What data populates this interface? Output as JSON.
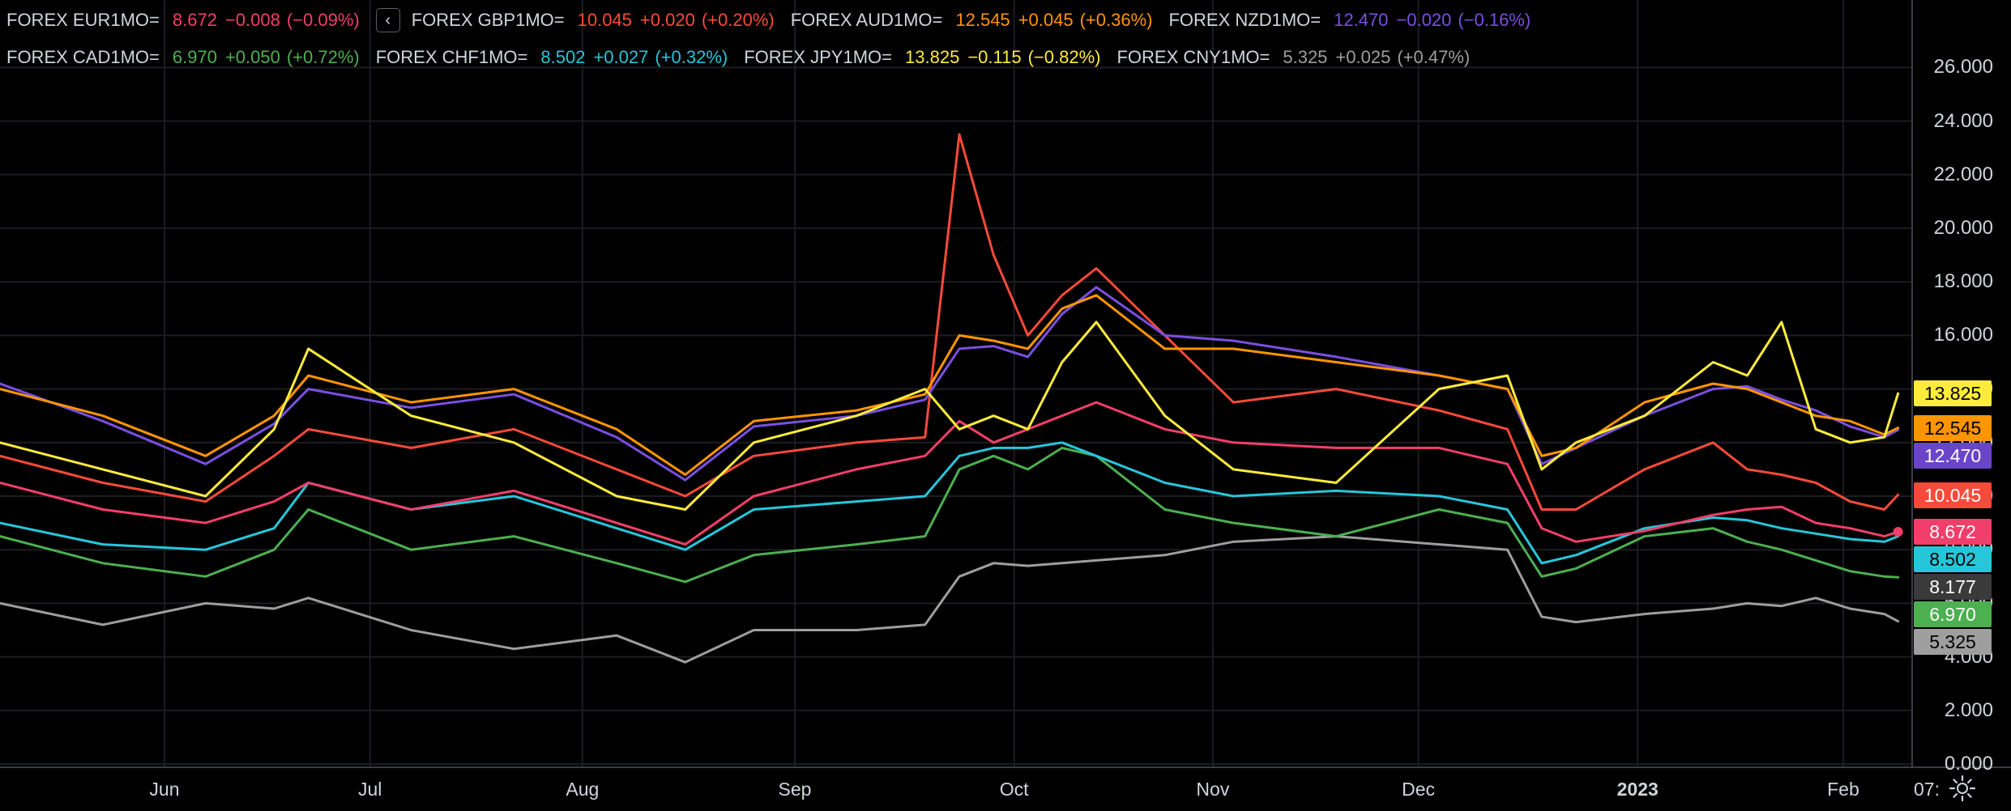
{
  "legend": {
    "collapse_glyph": "‹",
    "collapse_icon": "chevron-left-icon",
    "row1": [
      {
        "symbol": "FOREX EUR1MO=",
        "last": "8.672",
        "change": "−0.008",
        "pct": "(−0.09%)",
        "color": "#f23e6a"
      },
      {
        "symbol": "FOREX GBP1MO=",
        "last": "10.045",
        "change": "+0.020",
        "pct": "(+0.20%)",
        "color": "#f84a3a"
      },
      {
        "symbol": "FOREX AUD1MO=",
        "last": "12.545",
        "change": "+0.045",
        "pct": "(+0.36%)",
        "color": "#ff9500"
      },
      {
        "symbol": "FOREX NZD1MO=",
        "last": "12.470",
        "change": "−0.020",
        "pct": "(−0.16%)",
        "color": "#7a4fe0"
      }
    ],
    "row2": [
      {
        "symbol": "FOREX CAD1MO=",
        "last": "6.970",
        "change": "+0.050",
        "pct": "(+0.72%)",
        "color": "#4caf50"
      },
      {
        "symbol": "FOREX CHF1MO=",
        "last": "8.502",
        "change": "+0.027",
        "pct": "(+0.32%)",
        "color": "#26c6da"
      },
      {
        "symbol": "FOREX JPY1MO=",
        "last": "13.825",
        "change": "−0.115",
        "pct": "(−0.82%)",
        "color": "#ffeb3b"
      },
      {
        "symbol": "FOREX CNY1MO=",
        "last": "5.325",
        "change": "+0.025",
        "pct": "(+0.47%)",
        "color": "#9e9e9e"
      }
    ]
  },
  "price_tags": [
    {
      "value": "13.825",
      "bg": "#ffeb3b",
      "fg": "#000000"
    },
    {
      "value": "12.545",
      "bg": "#ff9500",
      "fg": "#000000"
    },
    {
      "value": "12.470",
      "bg": "#6a45c9",
      "fg": "#ffffff"
    },
    {
      "value": "10.045",
      "bg": "#f84a3a",
      "fg": "#ffffff"
    },
    {
      "value": "8.672",
      "bg": "#f23e6a",
      "fg": "#ffffff"
    },
    {
      "value": "8.502",
      "bg": "#26c6da",
      "fg": "#000000"
    },
    {
      "value": "8.177",
      "bg": "#3a3a3a",
      "fg": "#ffffff"
    },
    {
      "value": "6.970",
      "bg": "#4caf50",
      "fg": "#ffffff"
    },
    {
      "value": "5.325",
      "bg": "#9e9e9e",
      "fg": "#000000"
    }
  ],
  "time_axis": {
    "clipped_label": "07:",
    "settings_icon": "gear-icon"
  },
  "chart_data": {
    "type": "line",
    "ylim": [
      -0.5,
      27
    ],
    "y_ticks": [
      "0.000",
      "2.000",
      "4.000",
      "6.000",
      "8.000",
      "10.000",
      "12.000",
      "14.000",
      "16.000",
      "18.000",
      "20.000",
      "22.000",
      "24.000",
      "26.000"
    ],
    "grid": true,
    "legend_position": "top-left",
    "x_ticks": [
      {
        "label": "Jun",
        "x": "2022-06-01",
        "bold": false
      },
      {
        "label": "Jul",
        "x": "2022-07-01",
        "bold": false
      },
      {
        "label": "Aug",
        "x": "2022-08-01",
        "bold": false
      },
      {
        "label": "Sep",
        "x": "2022-09-01",
        "bold": false
      },
      {
        "label": "Oct",
        "x": "2022-10-03",
        "bold": false
      },
      {
        "label": "Nov",
        "x": "2022-11-01",
        "bold": false
      },
      {
        "label": "Dec",
        "x": "2022-12-01",
        "bold": false
      },
      {
        "label": "2023",
        "x": "2023-01-02",
        "bold": true
      },
      {
        "label": "Feb",
        "x": "2023-02-01",
        "bold": false
      }
    ],
    "x": [
      "2022-05-08",
      "2022-05-23",
      "2022-06-07",
      "2022-06-17",
      "2022-06-22",
      "2022-07-07",
      "2022-07-22",
      "2022-08-06",
      "2022-08-16",
      "2022-08-26",
      "2022-09-10",
      "2022-09-20",
      "2022-09-25",
      "2022-09-30",
      "2022-10-05",
      "2022-10-10",
      "2022-10-15",
      "2022-10-25",
      "2022-11-04",
      "2022-11-19",
      "2022-12-04",
      "2022-12-14",
      "2022-12-19",
      "2022-12-24",
      "2023-01-03",
      "2023-01-13",
      "2023-01-18",
      "2023-01-23",
      "2023-01-28",
      "2023-02-02",
      "2023-02-07",
      "2023-02-09"
    ],
    "series": [
      {
        "name": "FOREX EUR1MO=",
        "color": "#f23e6a",
        "end_marker": true,
        "values": [
          10.5,
          9.5,
          9.0,
          9.8,
          10.5,
          9.5,
          10.2,
          9.0,
          8.2,
          10.0,
          11.0,
          11.5,
          12.8,
          12.0,
          12.5,
          13.0,
          13.5,
          12.5,
          12.0,
          11.8,
          11.8,
          11.2,
          8.8,
          8.3,
          8.7,
          9.3,
          9.5,
          9.6,
          9.0,
          8.8,
          8.5,
          8.67
        ]
      },
      {
        "name": "FOREX GBP1MO=",
        "color": "#f84a3a",
        "end_marker": false,
        "values": [
          11.5,
          10.5,
          9.8,
          11.5,
          12.5,
          11.8,
          12.5,
          11.0,
          10.0,
          11.5,
          12.0,
          12.2,
          23.5,
          19.0,
          16.0,
          17.5,
          18.5,
          16.0,
          13.5,
          14.0,
          13.2,
          12.5,
          9.5,
          9.5,
          11.0,
          12.0,
          11.0,
          10.8,
          10.5,
          9.8,
          9.5,
          10.05
        ]
      },
      {
        "name": "FOREX AUD1MO=",
        "color": "#ff9500",
        "end_marker": false,
        "values": [
          14.0,
          13.0,
          11.5,
          13.0,
          14.5,
          13.5,
          14.0,
          12.5,
          10.8,
          12.8,
          13.2,
          13.8,
          16.0,
          15.8,
          15.5,
          17.0,
          17.5,
          15.5,
          15.5,
          15.0,
          14.5,
          14.0,
          11.5,
          11.8,
          13.5,
          14.2,
          14.0,
          13.5,
          13.0,
          12.8,
          12.3,
          12.55
        ]
      },
      {
        "name": "FOREX NZD1MO=",
        "color": "#7a4fe0",
        "end_marker": false,
        "values": [
          14.2,
          12.8,
          11.2,
          12.7,
          14.0,
          13.3,
          13.8,
          12.2,
          10.6,
          12.6,
          13.0,
          13.6,
          15.5,
          15.6,
          15.2,
          16.8,
          17.8,
          16.0,
          15.8,
          15.2,
          14.5,
          14.0,
          11.2,
          11.8,
          13.0,
          14.0,
          14.1,
          13.6,
          13.2,
          12.6,
          12.2,
          12.47
        ]
      },
      {
        "name": "FOREX CAD1MO=",
        "color": "#4caf50",
        "end_marker": false,
        "values": [
          8.5,
          7.5,
          7.0,
          8.0,
          9.5,
          8.0,
          8.5,
          7.5,
          6.8,
          7.8,
          8.2,
          8.5,
          11.0,
          11.5,
          11.0,
          11.8,
          11.5,
          9.5,
          9.0,
          8.5,
          9.5,
          9.0,
          7.0,
          7.3,
          8.5,
          8.8,
          8.3,
          8.0,
          7.6,
          7.2,
          7.0,
          6.97
        ]
      },
      {
        "name": "FOREX CHF1MO=",
        "color": "#26c6da",
        "end_marker": false,
        "values": [
          9.0,
          8.2,
          8.0,
          8.8,
          10.5,
          9.5,
          10.0,
          8.8,
          8.0,
          9.5,
          9.8,
          10.0,
          11.5,
          11.8,
          11.8,
          12.0,
          11.5,
          10.5,
          10.0,
          10.2,
          10.0,
          9.5,
          7.5,
          7.8,
          8.8,
          9.2,
          9.1,
          8.8,
          8.6,
          8.4,
          8.3,
          8.5
        ]
      },
      {
        "name": "FOREX JPY1MO=",
        "color": "#ffeb3b",
        "end_marker": false,
        "values": [
          12.0,
          11.0,
          10.0,
          12.5,
          15.5,
          13.0,
          12.0,
          10.0,
          9.5,
          12.0,
          13.0,
          14.0,
          12.5,
          13.0,
          12.5,
          15.0,
          16.5,
          13.0,
          11.0,
          10.5,
          14.0,
          14.5,
          11.0,
          12.0,
          13.0,
          15.0,
          14.5,
          16.5,
          12.5,
          12.0,
          12.2,
          13.83
        ]
      },
      {
        "name": "FOREX CNY1MO=",
        "color": "#9e9e9e",
        "end_marker": false,
        "values": [
          6.0,
          5.2,
          6.0,
          5.8,
          6.2,
          5.0,
          4.3,
          4.8,
          3.8,
          5.0,
          5.0,
          5.2,
          7.0,
          7.5,
          7.4,
          7.5,
          7.6,
          7.8,
          8.3,
          8.5,
          8.2,
          8.0,
          5.5,
          5.3,
          5.6,
          5.8,
          6.0,
          5.9,
          6.2,
          5.8,
          5.6,
          5.33
        ]
      }
    ]
  }
}
